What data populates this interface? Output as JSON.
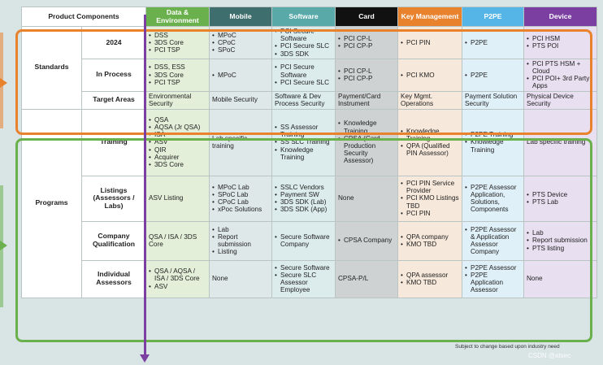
{
  "header": {
    "first": "Product Components",
    "columns": [
      {
        "label": "Data &\nEnvironment",
        "bg": "#6ab04c",
        "fg": "#ffffff",
        "cell": "#e3efd8"
      },
      {
        "label": "Mobile",
        "bg": "#3f6e6e",
        "fg": "#ffffff",
        "cell": "#dfe8e8"
      },
      {
        "label": "Software",
        "bg": "#5aa9a9",
        "fg": "#ffffff",
        "cell": "#dcecec"
      },
      {
        "label": "Card",
        "bg": "#111111",
        "fg": "#ffffff",
        "cell": "#cfd2d2"
      },
      {
        "label": "Key Management",
        "bg": "#e9822d",
        "fg": "#ffffff",
        "cell": "#f6e8da"
      },
      {
        "label": "P2PE",
        "bg": "#55b5e6",
        "fg": "#ffffff",
        "cell": "#dff0f8"
      },
      {
        "label": "Device",
        "bg": "#7b3fa2",
        "fg": "#ffffff",
        "cell": "#e8dff0"
      }
    ]
  },
  "groups": [
    {
      "label": "Standards",
      "rows": [
        {
          "label": "2024",
          "cells": [
            [
              "DSS",
              "3DS Core",
              "PCI TSP"
            ],
            [
              "MPoC",
              "CPoC",
              "SPoC"
            ],
            [
              "PCI Secure Software",
              "PCI Secure SLC",
              "3DS SDK"
            ],
            [
              "PCI CP-L",
              "PCI CP-P"
            ],
            [
              "PCI PIN"
            ],
            [
              "P2PE"
            ],
            [
              "PCI HSM",
              "PTS POI"
            ]
          ]
        },
        {
          "label": "In Process",
          "cells": [
            [
              "DSS, ESS",
              "3DS Core",
              "PCI TSP"
            ],
            [
              "MPoC"
            ],
            [
              "PCI Secure Software",
              "PCI Secure SLC"
            ],
            [
              "PCI CP-L",
              "PCI CP-P"
            ],
            [
              "PCI KMO"
            ],
            [
              "P2PE"
            ],
            [
              "PCI PTS HSM + Cloud",
              "PCI POI+ 3rd Party Apps"
            ]
          ]
        },
        {
          "label": "Target Areas",
          "cells": [
            "Environmental Security",
            "Mobile Security",
            "Software & Dev Process Security",
            "Payment/Card Instrument",
            "Key Mgmt. Operations",
            "Payment Solution Security",
            "Physical Device Security"
          ]
        }
      ]
    },
    {
      "label": "Programs",
      "rows": [
        {
          "label": "Training",
          "cells": [
            [
              "QSA",
              "AQSA (Jr QSA)",
              "ISA",
              "ASV",
              "QIR",
              "Acquirer",
              "3DS Core"
            ],
            "Lab specific training",
            [
              "SS Assessor Training",
              "SS SLC Training",
              "Knowledge Training"
            ],
            [
              "Knowledge Training",
              "CPSA (Card Production Security Assessor)"
            ],
            [
              "Knowledge Training",
              "QPA (Qualified PIN Assessor)"
            ],
            [
              "P2PE Training",
              "Knowledge Training"
            ],
            "Lab specific training"
          ]
        },
        {
          "label": "Listings (Assessors / Labs)",
          "cells": [
            "ASV Listing",
            [
              "MPoC Lab",
              "SPoC Lab",
              "CPoC Lab",
              "xPoc Solutions"
            ],
            [
              "SSLC Vendors",
              "Payment SW",
              "3DS SDK (Lab)",
              "3DS SDK (App)"
            ],
            "None",
            [
              "PCI PIN Service Provider",
              "PCI KMO Listings TBD",
              "PCI PIN"
            ],
            [
              "P2PE Assessor Application, Solutions, Components"
            ],
            [
              "PTS Device",
              "PTS Lab"
            ]
          ]
        },
        {
          "label": "Company Qualification",
          "cells": [
            "QSA / ISA / 3DS Core",
            [
              "Lab",
              "Report submission",
              "Listing"
            ],
            [
              "Secure Software Company"
            ],
            [
              "CPSA Company"
            ],
            [
              "QPA company",
              "KMO TBD"
            ],
            [
              "P2PE Assessor & Application Assessor Company"
            ],
            [
              "Lab",
              "Report submission",
              "PTS listing"
            ]
          ]
        },
        {
          "label": "Individual Assessors",
          "cells": [
            [
              "QSA / AQSA / ISA / 3DS Core",
              "ASV"
            ],
            "None",
            [
              "Secure Software",
              "Secure SLC Assessor Employee"
            ],
            "CPSA-P/L",
            [
              "QPA assessor",
              "KMO TBD"
            ],
            [
              "P2PE Assessor",
              "P2PE Application Assessor"
            ],
            "None"
          ]
        }
      ]
    }
  ],
  "footnote": "Subject to change based upon industry need",
  "watermark": "CSDN @atsec"
}
